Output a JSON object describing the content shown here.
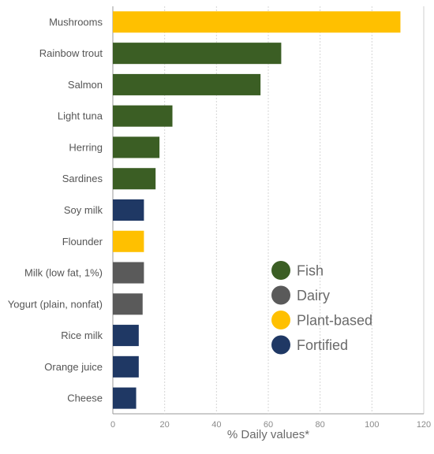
{
  "chart_data": {
    "type": "bar",
    "orientation": "horizontal",
    "categories": [
      "Mushrooms",
      "Rainbow trout",
      "Salmon",
      "Light tuna",
      "Herring",
      "Sardines",
      "Soy milk",
      "Flounder",
      "Milk (low fat, 1%)",
      "Yogurt (plain, nonfat)",
      "Rice milk",
      "Orange juice",
      "Cheese"
    ],
    "values": [
      111,
      65,
      57,
      23,
      18,
      16.5,
      12,
      12,
      12,
      11.5,
      10,
      10,
      9
    ],
    "groups": [
      "Plant-based",
      "Fish",
      "Fish",
      "Fish",
      "Fish",
      "Fish",
      "Fortified",
      "Plant-based",
      "Dairy",
      "Dairy",
      "Fortified",
      "Fortified",
      "Fortified"
    ],
    "xlabel": "% Daily values*",
    "xlim": [
      0,
      120
    ],
    "xticks": [
      0,
      20,
      40,
      60,
      80,
      100,
      120
    ],
    "grid": "vertical dotted",
    "legend_position": "bottom-right",
    "legend": [
      {
        "name": "Fish",
        "color": "#3b5e24"
      },
      {
        "name": "Dairy",
        "color": "#5a5a5a"
      },
      {
        "name": "Plant-based",
        "color": "#ffc000"
      },
      {
        "name": "Fortified",
        "color": "#1f3864"
      }
    ]
  }
}
